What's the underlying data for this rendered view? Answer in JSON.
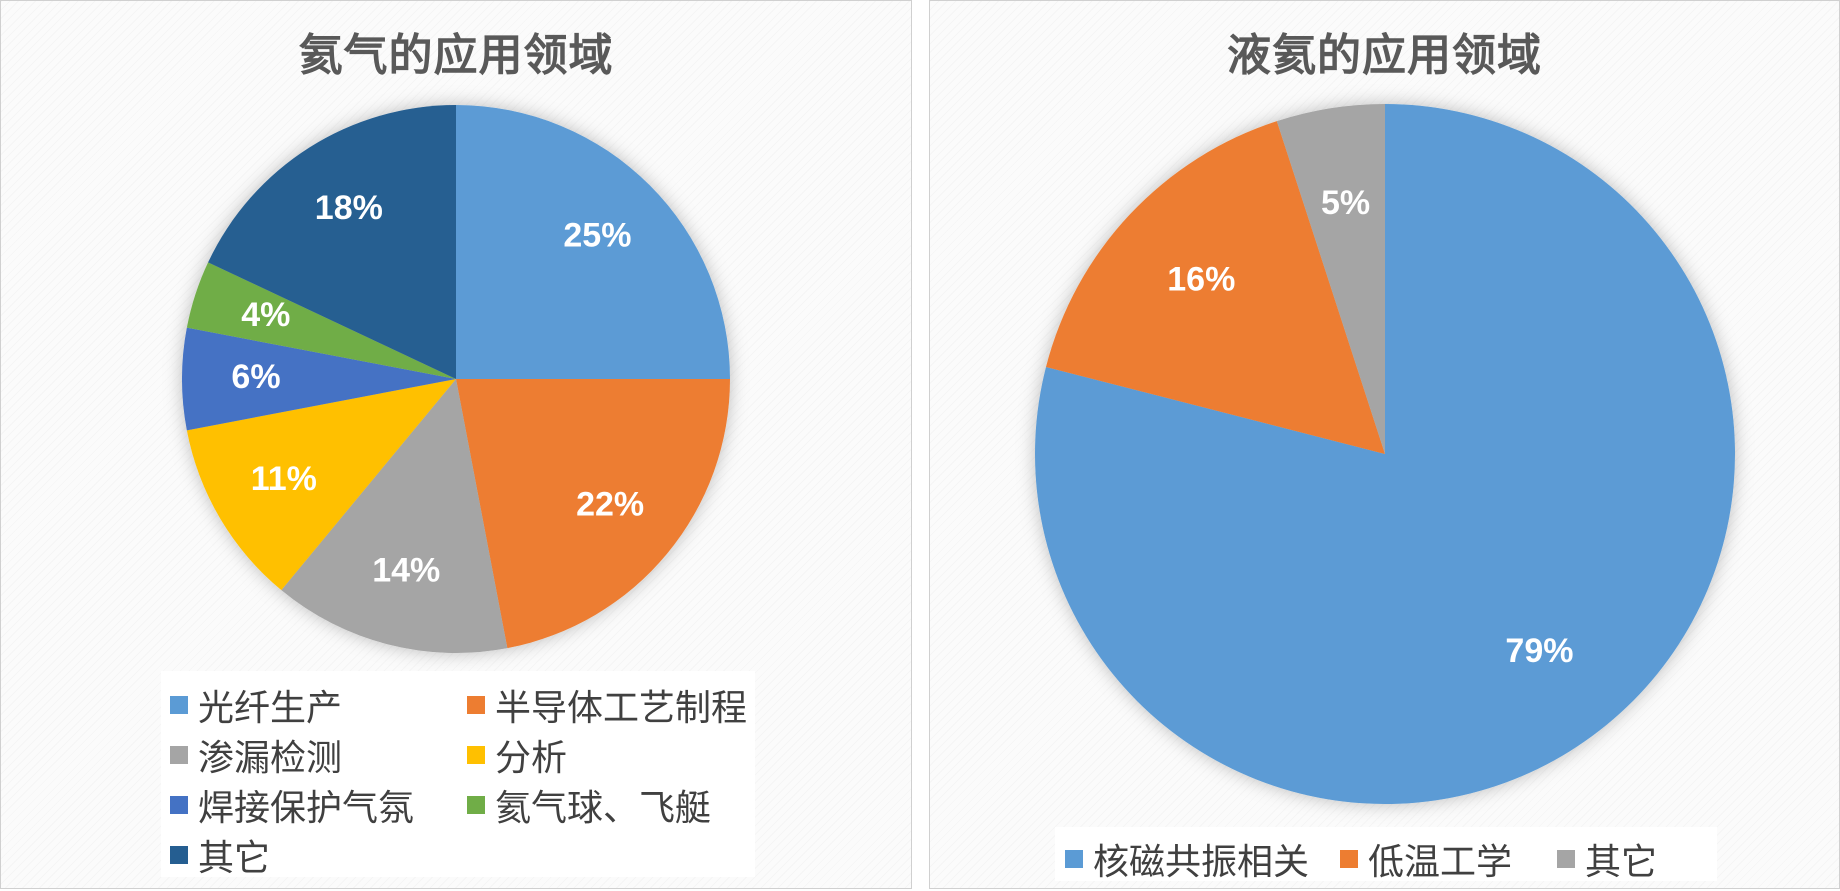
{
  "chart_data": [
    {
      "type": "pie",
      "title": "氦气的应用领域",
      "categories": [
        "光纤生产",
        "半导体工艺制程",
        "渗漏检测",
        "分析",
        "焊接保护气氛",
        "氦气球、飞艇",
        "其它"
      ],
      "values": [
        25,
        22,
        14,
        11,
        6,
        4,
        18
      ],
      "data_labels": [
        "25%",
        "22%",
        "14%",
        "11%",
        "6%",
        "4%",
        "18%"
      ],
      "colors": [
        "#5b9bd5",
        "#ed7d31",
        "#a5a5a5",
        "#ffc000",
        "#4472c4",
        "#70ad47",
        "#255e91"
      ],
      "legend_position": "bottom"
    },
    {
      "type": "pie",
      "title": "液氦的应用领域",
      "categories": [
        "核磁共振相关",
        "低温工学",
        "其它"
      ],
      "values": [
        79,
        16,
        5
      ],
      "data_labels": [
        "79%",
        "16%",
        "5%"
      ],
      "colors": [
        "#5b9bd5",
        "#ed7d31",
        "#a5a5a5"
      ],
      "legend_position": "bottom"
    }
  ]
}
